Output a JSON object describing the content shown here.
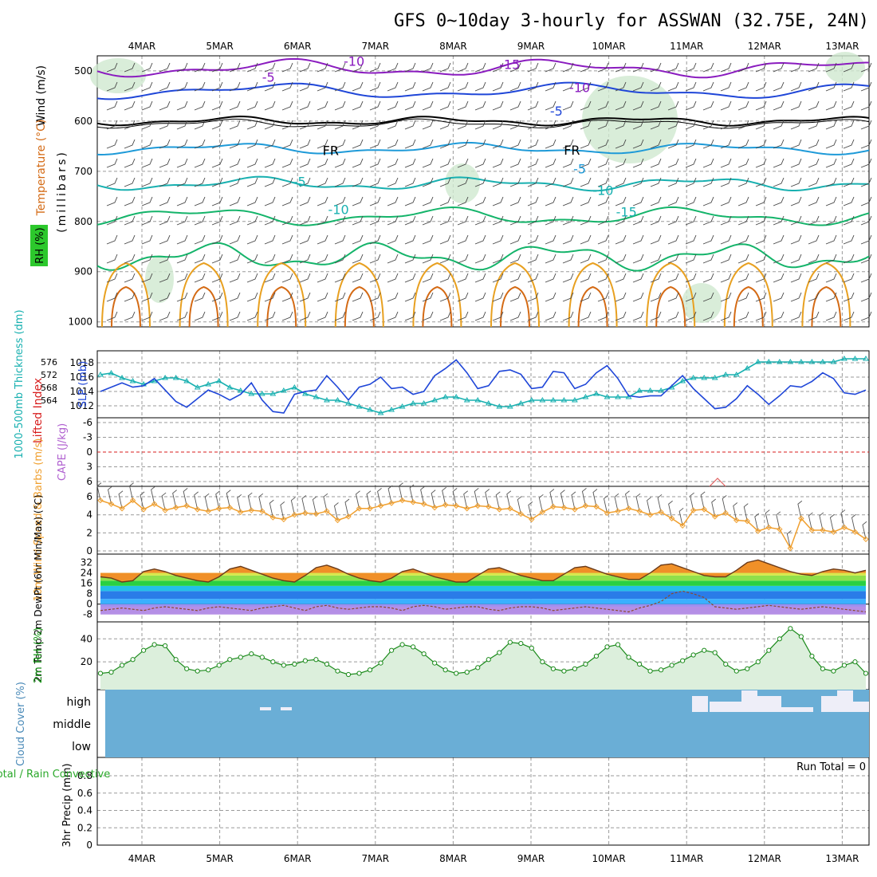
{
  "title": "GFS 0~10day 3-hourly for ASSWAN (32.75E, 24N)",
  "colors": {
    "purple": "#8a1bbf",
    "blue": "#1f46d8",
    "lightblue": "#1e9ad8",
    "teal": "#18b0b0",
    "green": "#14b46a",
    "orange": "#e8a020",
    "darkorange": "#d46a14",
    "red": "#d81e1e",
    "rhshade": "#cfe8d0",
    "cloud": "#6aaed6",
    "windorange": "#f0a030"
  },
  "chart_data": [
    {
      "type": "line",
      "name": "upper-air-cross-section",
      "x": [
        "4MAR",
        "5MAR",
        "6MAR",
        "7MAR",
        "8MAR",
        "9MAR",
        "10MAR",
        "11MAR",
        "12MAR",
        "13MAR"
      ],
      "ylabel": "(millibars)",
      "yticks": [
        500,
        600,
        700,
        800,
        900,
        1000
      ],
      "labels": {
        "rh": "RH (%)",
        "temp": "Temperature (°C)",
        "wind": "Wind (m/s)"
      },
      "contour_labels": [
        {
          "text": "-10",
          "p": 490,
          "t": 3.3
        },
        {
          "text": "-15",
          "p": 496,
          "t": 5.3
        },
        {
          "text": "-10",
          "p": 542,
          "t": 6.2
        },
        {
          "text": "-5",
          "p": 522,
          "t": 2.2
        },
        {
          "text": "-5",
          "p": 589,
          "t": 5.9
        },
        {
          "text": "FR",
          "p": 668,
          "t": 3.0
        },
        {
          "text": "FR",
          "p": 667,
          "t": 6.1
        },
        {
          "text": "-5",
          "p": 704,
          "t": 6.2
        },
        {
          "text": "-5",
          "p": 730,
          "t": 2.6
        },
        {
          "text": "-10",
          "p": 747,
          "t": 6.5
        },
        {
          "text": "-10",
          "p": 785,
          "t": 3.1
        },
        {
          "text": "-15",
          "p": 790,
          "t": 6.8
        }
      ]
    },
    {
      "type": "line",
      "name": "thickness-slp",
      "ylabel_left": "1000-500mb Thickness (dm)",
      "ylabel_right": "SLP (mb)",
      "thickness_ticks": [
        564,
        568,
        572,
        576
      ],
      "slp_ticks": [
        1012,
        1014,
        1016,
        1018
      ],
      "series": [
        {
          "name": "1000-500mb Thickness (dm)",
          "values": [
            572,
            572.5,
            571,
            570,
            569,
            570,
            571,
            571,
            570,
            568,
            569,
            570,
            568,
            567,
            566,
            566,
            566,
            567,
            568,
            566,
            565,
            564,
            564,
            563,
            562,
            561,
            560,
            561,
            562,
            563,
            563,
            564,
            565,
            565,
            564,
            564,
            563,
            562,
            562,
            563,
            564,
            564,
            564,
            564,
            564,
            565,
            566,
            565,
            565,
            565,
            567,
            567,
            567,
            568,
            570,
            571,
            571,
            571,
            572,
            572,
            574,
            576,
            576,
            576,
            576,
            576,
            576,
            576,
            576,
            577,
            577,
            577
          ]
        },
        {
          "name": "SLP (mb)",
          "values": [
            1014,
            1014.6,
            1015.2,
            1014.6,
            1014.8,
            1015.8,
            1014.2,
            1012.6,
            1011.8,
            1013,
            1014.2,
            1013.6,
            1012.8,
            1013.6,
            1015.2,
            1012.8,
            1011.2,
            1011,
            1013.6,
            1014,
            1014.2,
            1016.2,
            1014.6,
            1012.8,
            1014.6,
            1015,
            1016,
            1014.4,
            1014.6,
            1013.6,
            1014,
            1016.2,
            1017.2,
            1018.4,
            1016.6,
            1014.4,
            1014.8,
            1016.8,
            1017,
            1016.4,
            1014.4,
            1014.6,
            1016.8,
            1016.6,
            1014.4,
            1015,
            1016.6,
            1017.6,
            1015.8,
            1013.4,
            1013.2,
            1013.4,
            1013.4,
            1014.8,
            1016.2,
            1014.4,
            1013,
            1011.6,
            1011.8,
            1013,
            1014.8,
            1013.6,
            1012.2,
            1013.4,
            1014.8,
            1014.6,
            1015.4,
            1016.6,
            1015.8,
            1013.8,
            1013.6,
            1014.2
          ]
        }
      ]
    },
    {
      "type": "line",
      "name": "lifted-index-cape",
      "ylabel_left": "Lifted Index",
      "ylabel_right": "CAPE (J/kg)",
      "yticks": [
        "-6",
        "-3",
        "0",
        "3",
        "6"
      ],
      "li_values": [],
      "cape_values": []
    },
    {
      "type": "line",
      "name": "10m-wind",
      "ylabel": "10m Wind Speed & Barbs (m/s)",
      "yticks": [
        0,
        2,
        4,
        6
      ],
      "values": [
        5.6,
        5.2,
        4.7,
        5.6,
        4.6,
        5.2,
        4.5,
        4.8,
        5.0,
        4.6,
        4.4,
        4.7,
        4.8,
        4.3,
        4.5,
        4.4,
        3.7,
        3.5,
        4.0,
        4.2,
        4.1,
        4.4,
        3.4,
        3.8,
        4.7,
        4.7,
        5.0,
        5.3,
        5.6,
        5.4,
        5.2,
        4.8,
        5.1,
        5.0,
        4.7,
        5.0,
        4.9,
        4.6,
        4.7,
        4.1,
        3.5,
        4.3,
        4.9,
        4.8,
        4.6,
        5.0,
        4.9,
        4.2,
        4.4,
        4.7,
        4.4,
        4.0,
        4.3,
        3.6,
        2.8,
        4.5,
        4.6,
        3.8,
        4.2,
        3.4,
        3.3,
        2.2,
        2.6,
        2.4,
        0.3,
        3.6,
        2.3,
        2.3,
        2.1,
        2.6,
        2.1,
        1.3
      ]
    },
    {
      "type": "area",
      "name": "2m-temp",
      "ylabel": "2m Temp 2m DewPt (6hr Min/Max) (°C)",
      "yticks": [
        -8,
        0,
        8,
        16,
        24,
        32
      ],
      "temp": [
        21,
        20,
        17,
        18,
        25,
        27,
        25,
        22,
        20,
        18,
        17,
        21,
        27,
        29,
        26,
        23,
        20,
        18,
        17,
        22,
        28,
        30,
        27,
        23,
        20,
        18,
        17,
        20,
        25,
        27,
        24,
        21,
        19,
        17,
        17,
        22,
        27,
        28,
        25,
        22,
        20,
        18,
        18,
        23,
        28,
        29,
        26,
        23,
        21,
        19,
        19,
        24,
        30,
        31,
        28,
        25,
        22,
        21,
        21,
        26,
        32,
        34,
        31,
        28,
        25,
        23,
        22,
        25,
        27,
        26,
        24,
        26
      ],
      "dewpt": [
        -5,
        -4,
        -3,
        -4,
        -5,
        -3,
        -2,
        -3,
        -4,
        -5,
        -3,
        -2,
        -3,
        -4,
        -5,
        -3,
        -2,
        -1,
        -3,
        -5,
        -2,
        -1,
        -3,
        -4,
        -3,
        -2,
        -2,
        -3,
        -5,
        -2,
        -1,
        -2,
        -4,
        -3,
        -2,
        -2,
        -4,
        -5,
        -3,
        -2,
        -2,
        -3,
        -5,
        -4,
        -3,
        -2,
        -3,
        -4,
        -5,
        -6,
        -3,
        -1,
        2,
        8,
        10,
        8,
        5,
        -2,
        -3,
        -4,
        -3,
        -2,
        -1,
        -2,
        -3,
        -4,
        -3,
        -2,
        -3,
        -4,
        -5,
        -6
      ]
    },
    {
      "type": "area",
      "name": "2m-rh",
      "ylabel": "2m RH (%)",
      "yticks": [
        20,
        40
      ],
      "values": [
        10,
        11,
        17,
        22,
        30,
        35,
        34,
        22,
        14,
        12,
        13,
        17,
        22,
        24,
        27,
        24,
        20,
        17,
        18,
        21,
        22,
        18,
        12,
        9,
        10,
        13,
        19,
        30,
        35,
        33,
        27,
        19,
        13,
        10,
        11,
        15,
        22,
        28,
        37,
        36,
        32,
        20,
        14,
        12,
        14,
        18,
        25,
        33,
        35,
        24,
        18,
        12,
        13,
        17,
        21,
        26,
        30,
        28,
        18,
        12,
        14,
        20,
        30,
        40,
        49,
        42,
        25,
        14,
        12,
        17,
        20,
        10
      ]
    },
    {
      "type": "heatmap",
      "name": "cloud-cover",
      "ylabel": "Cloud Cover (%)",
      "levels": [
        "high",
        "middle",
        "low"
      ]
    },
    {
      "type": "bar",
      "name": "precip",
      "ylabel": "3hr Precip (mm)",
      "legend": "Total / Rain Convective",
      "yticks": [
        0,
        0.2,
        0.4,
        0.6,
        0.8
      ],
      "annotation": "Run Total = 0",
      "values": []
    }
  ]
}
